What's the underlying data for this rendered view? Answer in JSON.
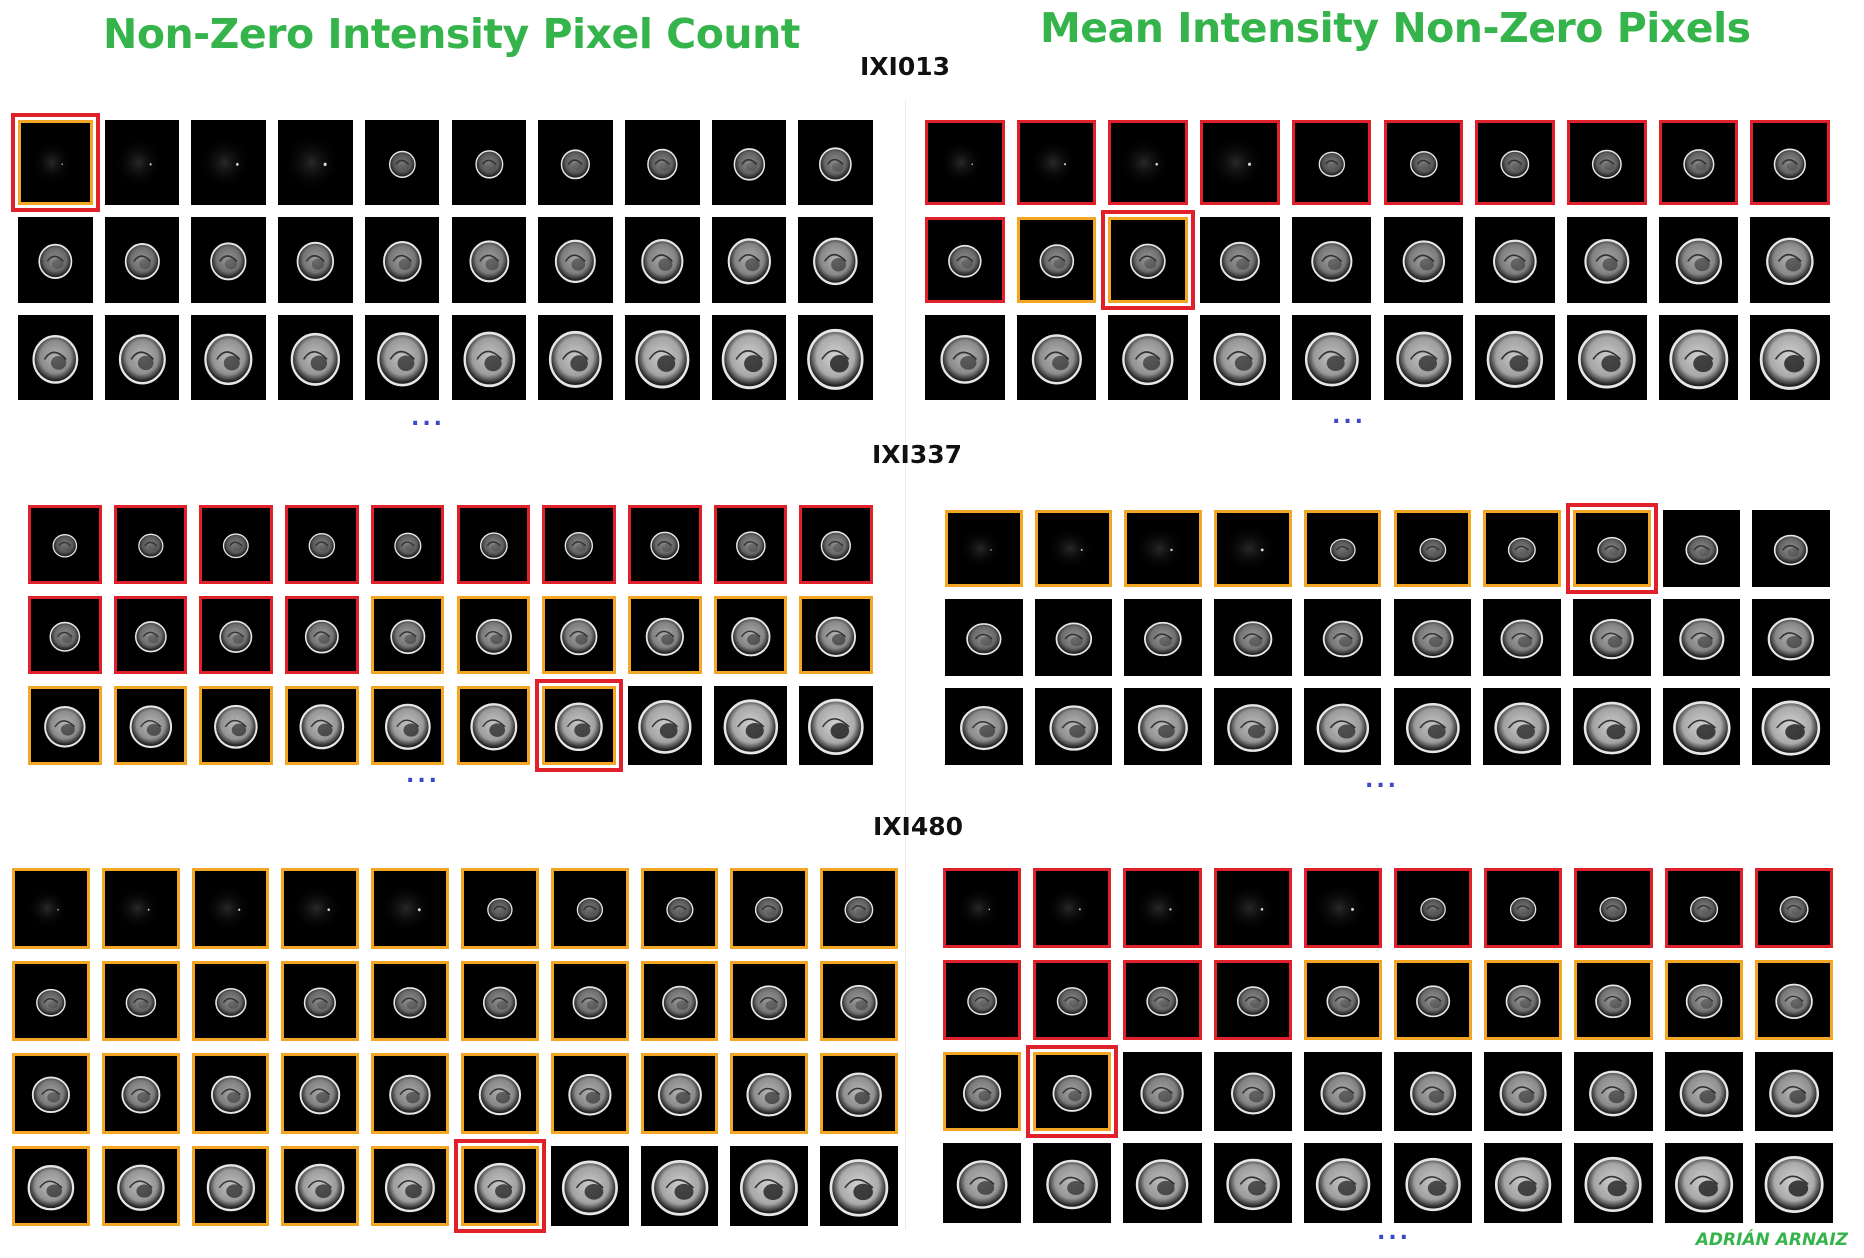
{
  "titles": {
    "left": "Non-Zero Intensity Pixel Count",
    "right": "Mean Intensity Non-Zero Pixels"
  },
  "author": "ADRIÁN ARNAIZ",
  "ellipsis": "...",
  "colors": {
    "title": "#34b44a",
    "red": "#e0202a",
    "orange": "#f2a623",
    "ellipsis": "#3b49c7"
  },
  "subjects": [
    {
      "name": "IXI013",
      "left": {
        "cols": 10,
        "rows": [
          [
            "d",
            "n",
            "n",
            "n",
            "n",
            "n",
            "n",
            "n",
            "n",
            "n"
          ],
          [
            "n",
            "n",
            "n",
            "n",
            "n",
            "n",
            "n",
            "n",
            "n",
            "n"
          ],
          [
            "n",
            "n",
            "n",
            "n",
            "n",
            "n",
            "n",
            "n",
            "n",
            "n"
          ]
        ]
      },
      "right": {
        "cols": 10,
        "rows": [
          [
            "r",
            "r",
            "r",
            "r",
            "r",
            "r",
            "r",
            "r",
            "r",
            "r"
          ],
          [
            "r",
            "o",
            "d",
            "n",
            "n",
            "n",
            "n",
            "n",
            "n",
            "n"
          ],
          [
            "n",
            "n",
            "n",
            "n",
            "n",
            "n",
            "n",
            "n",
            "n",
            "n"
          ]
        ]
      }
    },
    {
      "name": "IXI337",
      "left": {
        "cols": 10,
        "rows": [
          [
            "r",
            "r",
            "r",
            "r",
            "r",
            "r",
            "r",
            "r",
            "r",
            "r"
          ],
          [
            "r",
            "r",
            "r",
            "r",
            "o",
            "o",
            "o",
            "o",
            "o",
            "o"
          ],
          [
            "o",
            "o",
            "o",
            "o",
            "o",
            "o",
            "d",
            "n",
            "n",
            "n"
          ]
        ]
      },
      "right": {
        "cols": 10,
        "rows": [
          [
            "o",
            "o",
            "o",
            "o",
            "o",
            "o",
            "o",
            "d",
            "n",
            "n"
          ],
          [
            "n",
            "n",
            "n",
            "n",
            "n",
            "n",
            "n",
            "n",
            "n",
            "n"
          ],
          [
            "n",
            "n",
            "n",
            "n",
            "n",
            "n",
            "n",
            "n",
            "n",
            "n"
          ]
        ]
      }
    },
    {
      "name": "IXI480",
      "left": {
        "cols": 10,
        "rows": [
          [
            "o",
            "o",
            "o",
            "o",
            "o",
            "o",
            "o",
            "o",
            "o",
            "o"
          ],
          [
            "o",
            "o",
            "o",
            "o",
            "o",
            "o",
            "o",
            "o",
            "o",
            "o"
          ],
          [
            "o",
            "o",
            "o",
            "o",
            "o",
            "o",
            "o",
            "o",
            "o",
            "o"
          ],
          [
            "o",
            "o",
            "o",
            "o",
            "o",
            "d",
            "n",
            "n",
            "n",
            "n"
          ]
        ]
      },
      "right": {
        "cols": 10,
        "rows": [
          [
            "r",
            "r",
            "r",
            "r",
            "r",
            "r",
            "r",
            "r",
            "r",
            "r"
          ],
          [
            "r",
            "r",
            "r",
            "r",
            "o",
            "o",
            "o",
            "o",
            "o",
            "o"
          ],
          [
            "o",
            "d",
            "n",
            "n",
            "n",
            "n",
            "n",
            "n",
            "n",
            "n"
          ],
          [
            "n",
            "n",
            "n",
            "n",
            "n",
            "n",
            "n",
            "n",
            "n",
            "n"
          ]
        ]
      }
    }
  ]
}
